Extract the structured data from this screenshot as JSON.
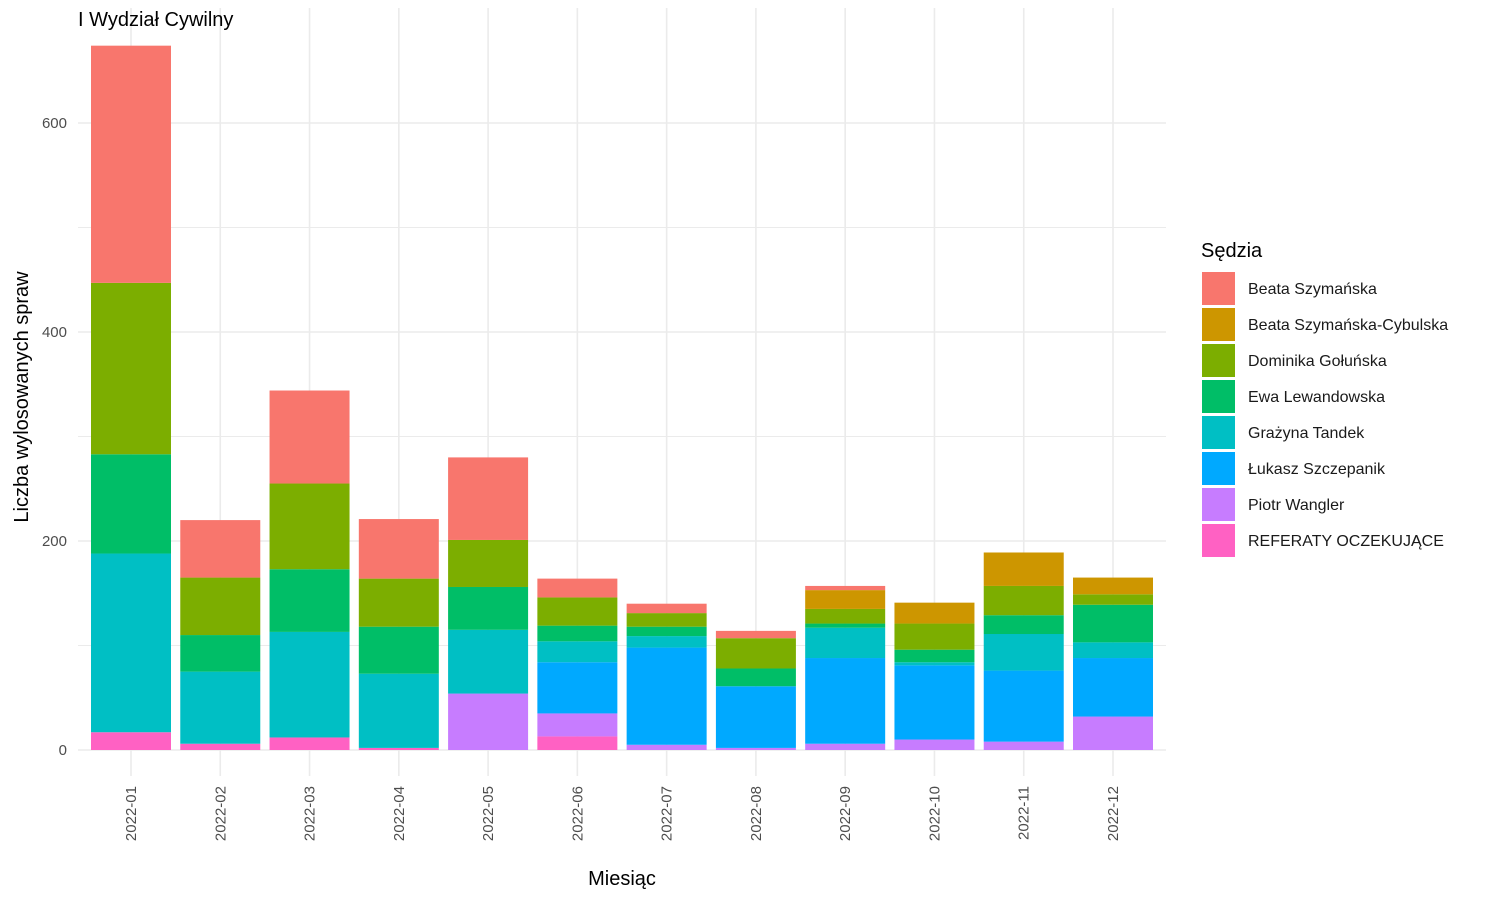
{
  "chart_data": {
    "type": "bar",
    "stacked": true,
    "title": "I Wydział Cywilny",
    "xlabel": "Miesiąc",
    "ylabel": "Liczba wylosowanych spraw",
    "ylim": [
      -25,
      690
    ],
    "yticks": [
      0,
      200,
      400,
      600
    ],
    "grid": true,
    "legend": {
      "title": "Sędzia",
      "position": "right"
    },
    "categories": [
      "2022-01",
      "2022-02",
      "2022-03",
      "2022-04",
      "2022-05",
      "2022-06",
      "2022-07",
      "2022-08",
      "2022-09",
      "2022-10",
      "2022-11",
      "2022-12"
    ],
    "series": [
      {
        "name": "REFERATY OCZEKUJĄCE",
        "color": "#FF61C3",
        "values": [
          17,
          6,
          12,
          2,
          0,
          13,
          0,
          0,
          0,
          0,
          0,
          0
        ]
      },
      {
        "name": "Piotr Wangler",
        "color": "#C77CFF",
        "values": [
          0,
          0,
          0,
          0,
          54,
          22,
          5,
          2,
          6,
          10,
          8,
          32
        ]
      },
      {
        "name": "Łukasz Szczepanik",
        "color": "#00A9FF",
        "values": [
          0,
          0,
          0,
          0,
          0,
          49,
          93,
          59,
          82,
          71,
          68,
          56
        ]
      },
      {
        "name": "Grażyna Tandek",
        "color": "#00BFC4",
        "values": [
          171,
          69,
          101,
          71,
          61,
          20,
          11,
          0,
          29,
          3,
          35,
          15
        ]
      },
      {
        "name": "Ewa Lewandowska",
        "color": "#00BE67",
        "values": [
          95,
          35,
          60,
          45,
          41,
          15,
          9,
          17,
          4,
          12,
          18,
          36
        ]
      },
      {
        "name": "Dominika Gołuńska",
        "color": "#7CAE00",
        "values": [
          164,
          55,
          82,
          46,
          45,
          27,
          13,
          29,
          14,
          25,
          28,
          10
        ]
      },
      {
        "name": "Beata Szymańska-Cybulska",
        "color": "#CD9600",
        "values": [
          0,
          0,
          0,
          0,
          0,
          0,
          0,
          0,
          18,
          20,
          32,
          16
        ]
      },
      {
        "name": "Beata Szymańska",
        "color": "#F8766D",
        "values": [
          227,
          55,
          89,
          57,
          79,
          18,
          9,
          7,
          4,
          0,
          0,
          0
        ]
      }
    ],
    "legend_order": [
      "Beata Szymańska",
      "Beata Szymańska-Cybulska",
      "Dominika Gołuńska",
      "Ewa Lewandowska",
      "Grażyna Tandek",
      "Łukasz Szczepanik",
      "Piotr Wangler",
      "REFERATY OCZEKUJĄCE"
    ]
  }
}
